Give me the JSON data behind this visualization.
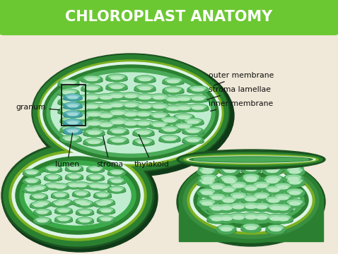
{
  "title": "CHLOROPLAST ANATOMY",
  "title_color": "#ffffff",
  "title_bg": "#6cc832",
  "bg_color": "#f0e8d8",
  "border_color": "#c8b878",
  "label_color": "#111111",
  "labels": {
    "outer_membrane": "outer membrane",
    "stroma_lamellae": "stroma lamellae",
    "inner_membrane": "inner membrane",
    "granum": "granum",
    "lumen": "lumen",
    "stroma": "stroma",
    "thylakoid": "thylakoid"
  },
  "colors": {
    "darkest_green": "#1a5220",
    "dark_green": "#2a7a35",
    "mid_green": "#3a9a45",
    "olive_yellow": "#8ab020",
    "cream_white": "#e8f8e0",
    "light_green_stroma": "#5ab865",
    "pale_interior": "#c8efd0",
    "disk_dark": "#2a6a35",
    "disk_main": "#4aaa5a",
    "disk_highlight": "#90d8a0",
    "disk_lumen": "#b8e8c0",
    "teal_lumen": "#2a8080",
    "teal_mid": "#40a0a0",
    "teal_light": "#70c0c0"
  }
}
